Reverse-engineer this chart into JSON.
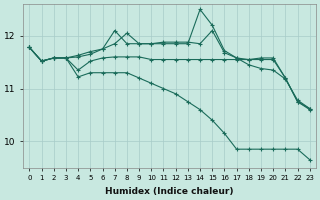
{
  "xlabel": "Humidex (Indice chaleur)",
  "xlim": [
    -0.5,
    23.5
  ],
  "ylim": [
    9.5,
    12.6
  ],
  "yticks": [
    10,
    11,
    12
  ],
  "xticks": [
    0,
    1,
    2,
    3,
    4,
    5,
    6,
    7,
    8,
    9,
    10,
    11,
    12,
    13,
    14,
    15,
    16,
    17,
    18,
    19,
    20,
    21,
    22,
    23
  ],
  "bg_color": "#c8e8e0",
  "grid_color": "#a8ccc8",
  "line_color": "#1a6b5a",
  "curves": [
    [
      11.78,
      11.52,
      11.58,
      11.58,
      11.63,
      11.7,
      11.75,
      11.85,
      12.05,
      11.85,
      11.85,
      11.88,
      11.88,
      11.88,
      11.85,
      12.1,
      11.68,
      11.58,
      11.55,
      11.58,
      11.58,
      11.2,
      10.75,
      10.6
    ],
    [
      11.78,
      11.52,
      11.58,
      11.58,
      11.6,
      11.65,
      11.75,
      12.1,
      11.85,
      11.85,
      11.85,
      11.85,
      11.85,
      11.85,
      12.5,
      12.2,
      11.72,
      11.58,
      11.45,
      11.38,
      11.35,
      11.18,
      10.78,
      10.62
    ],
    [
      11.78,
      11.52,
      11.58,
      11.58,
      11.35,
      11.52,
      11.58,
      11.6,
      11.6,
      11.6,
      11.55,
      11.55,
      11.55,
      11.55,
      11.55,
      11.55,
      11.55,
      11.55,
      11.55,
      11.55,
      11.55,
      11.2,
      10.75,
      10.62
    ],
    [
      11.78,
      11.52,
      11.58,
      11.58,
      11.22,
      11.3,
      11.3,
      11.3,
      11.3,
      11.2,
      11.1,
      11.0,
      10.9,
      10.75,
      10.6,
      10.4,
      10.15,
      9.85,
      9.85,
      9.85,
      9.85,
      9.85,
      9.85,
      9.65
    ]
  ]
}
